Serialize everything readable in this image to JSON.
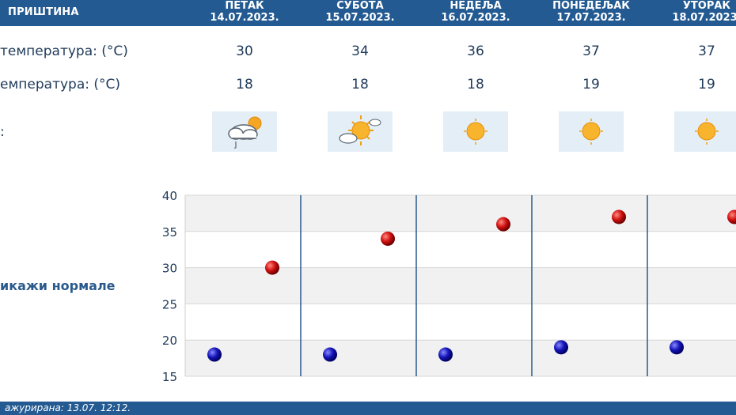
{
  "header": {
    "city": "ПРИШТИНА",
    "days": [
      {
        "name": "ПЕТАК",
        "date": "14.07.2023."
      },
      {
        "name": "СУБОТА",
        "date": "15.07.2023."
      },
      {
        "name": "НЕДЕЉА",
        "date": "16.07.2023."
      },
      {
        "name": "ПОНЕДЕЉАК",
        "date": "17.07.2023."
      },
      {
        "name": "УТОРАК",
        "date": "18.07.2023."
      }
    ]
  },
  "rows": {
    "max_label": "температура: (°C)",
    "min_label": "емпература: (°C)",
    "icon_label": ":",
    "max_values": [
      "30",
      "34",
      "36",
      "37",
      "37"
    ],
    "min_values": [
      "18",
      "18",
      "18",
      "19",
      "19"
    ],
    "icons": [
      "cloud-rain-sun-icon",
      "sun-cloud-icon",
      "sun-icon",
      "sun-icon",
      "sun-icon"
    ]
  },
  "normals_link": "икажи нормале",
  "footer": {
    "text": "ажурирана:  13.07.  12:12."
  },
  "colors": {
    "header_bg": "#235a92",
    "max_point": "#c81010",
    "min_point": "#1010b0",
    "divider": "#2a5a8c",
    "band": "#f1f1f1"
  },
  "chart_data": {
    "type": "scatter",
    "title": "",
    "xlabel": "",
    "ylabel": "",
    "ylim": [
      15,
      40
    ],
    "yticks": [
      "40",
      "35",
      "30",
      "25",
      "20",
      "15"
    ],
    "x": [
      "14.07.2023.",
      "15.07.2023.",
      "16.07.2023.",
      "17.07.2023.",
      "18.07.2023."
    ],
    "series": [
      {
        "values": [
          30,
          34,
          36,
          37,
          37
        ],
        "color": "#c81010"
      },
      {
        "values": [
          18,
          18,
          18,
          19,
          19
        ],
        "color": "#1010b0"
      }
    ]
  }
}
